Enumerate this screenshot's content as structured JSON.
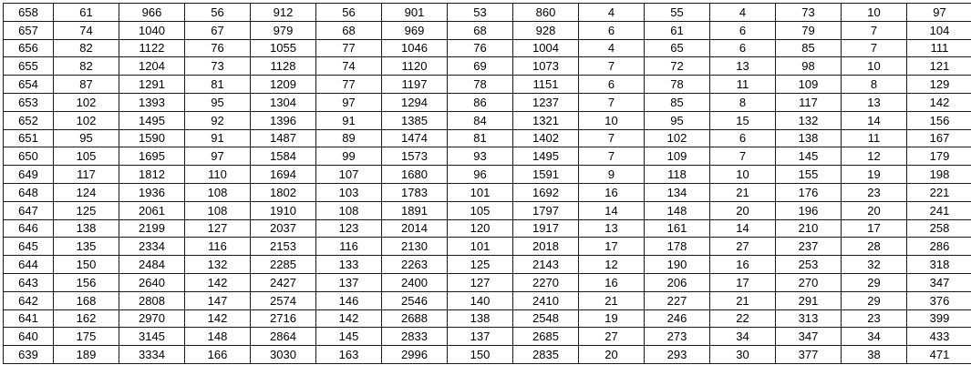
{
  "table": {
    "rows": [
      [
        658,
        61,
        966,
        56,
        912,
        56,
        901,
        53,
        860,
        4,
        55,
        4,
        73,
        10,
        97
      ],
      [
        657,
        74,
        1040,
        67,
        979,
        68,
        969,
        68,
        928,
        6,
        61,
        6,
        79,
        7,
        104
      ],
      [
        656,
        82,
        1122,
        76,
        1055,
        77,
        1046,
        76,
        1004,
        4,
        65,
        6,
        85,
        7,
        111
      ],
      [
        655,
        82,
        1204,
        73,
        1128,
        74,
        1120,
        69,
        1073,
        7,
        72,
        13,
        98,
        10,
        121
      ],
      [
        654,
        87,
        1291,
        81,
        1209,
        77,
        1197,
        78,
        1151,
        6,
        78,
        11,
        109,
        8,
        129
      ],
      [
        653,
        102,
        1393,
        95,
        1304,
        97,
        1294,
        86,
        1237,
        7,
        85,
        8,
        117,
        13,
        142
      ],
      [
        652,
        102,
        1495,
        92,
        1396,
        91,
        1385,
        84,
        1321,
        10,
        95,
        15,
        132,
        14,
        156
      ],
      [
        651,
        95,
        1590,
        91,
        1487,
        89,
        1474,
        81,
        1402,
        7,
        102,
        6,
        138,
        11,
        167
      ],
      [
        650,
        105,
        1695,
        97,
        1584,
        99,
        1573,
        93,
        1495,
        7,
        109,
        7,
        145,
        12,
        179
      ],
      [
        649,
        117,
        1812,
        110,
        1694,
        107,
        1680,
        96,
        1591,
        9,
        118,
        10,
        155,
        19,
        198
      ],
      [
        648,
        124,
        1936,
        108,
        1802,
        103,
        1783,
        101,
        1692,
        16,
        134,
        21,
        176,
        23,
        221
      ],
      [
        647,
        125,
        2061,
        108,
        1910,
        108,
        1891,
        105,
        1797,
        14,
        148,
        20,
        196,
        20,
        241
      ],
      [
        646,
        138,
        2199,
        127,
        2037,
        123,
        2014,
        120,
        1917,
        13,
        161,
        14,
        210,
        17,
        258
      ],
      [
        645,
        135,
        2334,
        116,
        2153,
        116,
        2130,
        101,
        2018,
        17,
        178,
        27,
        237,
        28,
        286
      ],
      [
        644,
        150,
        2484,
        132,
        2285,
        133,
        2263,
        125,
        2143,
        12,
        190,
        16,
        253,
        32,
        318
      ],
      [
        643,
        156,
        2640,
        142,
        2427,
        137,
        2400,
        127,
        2270,
        16,
        206,
        17,
        270,
        29,
        347
      ],
      [
        642,
        168,
        2808,
        147,
        2574,
        146,
        2546,
        140,
        2410,
        21,
        227,
        21,
        291,
        29,
        376
      ],
      [
        641,
        162,
        2970,
        142,
        2716,
        142,
        2688,
        138,
        2548,
        19,
        246,
        22,
        313,
        23,
        399
      ],
      [
        640,
        175,
        3145,
        148,
        2864,
        145,
        2833,
        137,
        2685,
        27,
        273,
        34,
        347,
        34,
        433
      ],
      [
        639,
        189,
        3334,
        166,
        3030,
        163,
        2996,
        150,
        2835,
        20,
        293,
        30,
        377,
        38,
        471
      ]
    ]
  },
  "colors": {
    "background": "#ffffff",
    "border": "#1a1a1a",
    "text": "#000000"
  }
}
